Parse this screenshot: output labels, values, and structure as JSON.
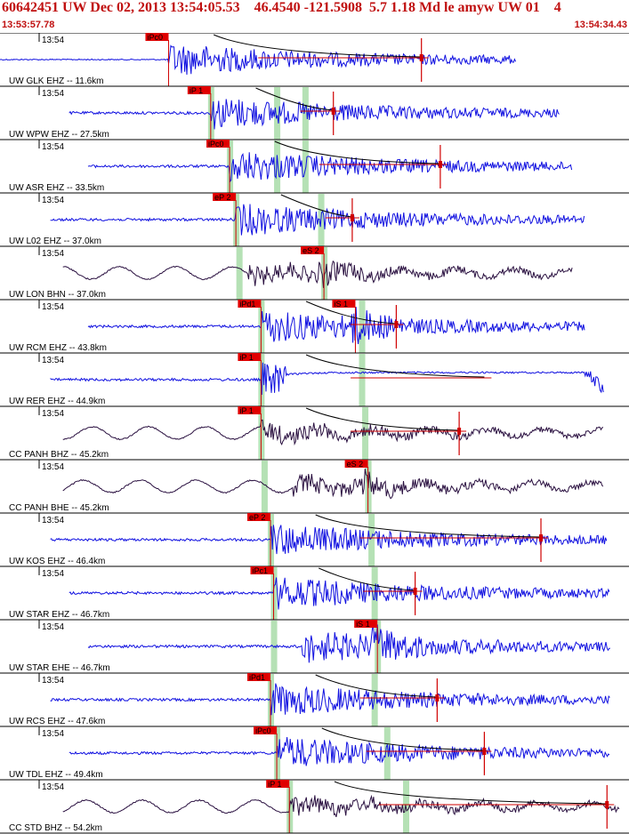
{
  "header": {
    "title": "60642451 UW Dec 02, 2013 13:54:05.53    46.4540 -121.5908  5.7 1.18 Md le amyw UW 01    4",
    "start_time": "13:53:57.78",
    "end_time": "13:54:34.43"
  },
  "colors": {
    "header_text": "#c01010",
    "trace_short_period": "#1010e0",
    "trace_broadband": "#2a1040",
    "pick_box": "#e00000",
    "pick_line": "#d00000",
    "window_band": "#a8dca8",
    "decay_curve": "#000000",
    "grid": "#000000"
  },
  "chart_data": {
    "type": "seismogram",
    "time_range": [
      "13:53:57.78",
      "13:54:34.43"
    ],
    "traces": [
      {
        "label": "UW GLK EHZ -- 11.6km",
        "time_tick": "13:54",
        "kind": "sp",
        "p_pick": "iPc0",
        "p_t": 0.268,
        "s_pick": "",
        "s_t": null,
        "windows": [],
        "coda_end": 0.67,
        "tail_mark": 0.67,
        "end_t": 0.82
      },
      {
        "label": "UW WPW EHZ -- 27.5km",
        "time_tick": "13:54",
        "kind": "sp",
        "p_pick": "iP 1",
        "p_t": 0.335,
        "s_pick": "",
        "s_t": null,
        "windows": [
          0.335,
          0.44,
          0.485
        ],
        "coda_end": 0.53,
        "tail_mark": 0.53,
        "end_t": 0.89
      },
      {
        "label": "UW ASR EHZ -- 33.5km",
        "time_tick": "13:54",
        "kind": "sp",
        "p_pick": "iPc0",
        "p_t": 0.365,
        "s_pick": "",
        "s_t": null,
        "windows": [
          0.365,
          0.44,
          0.485
        ],
        "coda_end": 0.7,
        "tail_mark": 0.7,
        "end_t": 0.91
      },
      {
        "label": "UW L02 EHZ -- 37.0km",
        "time_tick": "13:54",
        "kind": "sp",
        "p_pick": "eP 2",
        "p_t": 0.375,
        "s_pick": "",
        "s_t": null,
        "windows": [
          0.375,
          0.51
        ],
        "coda_end": 0.56,
        "tail_mark": 0.56,
        "end_t": 0.93
      },
      {
        "label": "UW LON BHN -- 37.0km",
        "time_tick": "13:54",
        "kind": "bb",
        "p_pick": "",
        "p_t": null,
        "s_pick": "eS 2",
        "s_t": 0.515,
        "windows": [
          0.38,
          0.515
        ],
        "coda_end": null,
        "tail_mark": null,
        "end_t": 0.91
      },
      {
        "label": "UW RCM EHZ -- 43.8km",
        "time_tick": "13:54",
        "kind": "sp",
        "p_pick": "iPd1",
        "p_t": 0.415,
        "s_pick": "iS 1",
        "s_t": 0.565,
        "windows": [
          0.415,
          0.575
        ],
        "coda_end": 0.63,
        "tail_mark": 0.63,
        "end_t": 0.93
      },
      {
        "label": "UW RER EHZ -- 44.9km",
        "time_tick": "13:54",
        "kind": "sp_drift",
        "p_pick": "iP 1",
        "p_t": 0.415,
        "s_pick": "",
        "s_t": null,
        "windows": [
          0.415,
          0.575
        ],
        "coda_end": 0.77,
        "tail_mark": null,
        "end_t": 0.96
      },
      {
        "label": "CC PANH BHZ -- 45.2km",
        "time_tick": "13:54",
        "kind": "bb",
        "p_pick": "iP 1",
        "p_t": 0.415,
        "s_pick": "",
        "s_t": null,
        "windows": [
          0.415,
          0.58
        ],
        "coda_end": 0.73,
        "tail_mark": 0.73,
        "end_t": 0.96
      },
      {
        "label": "CC PANH BHE -- 45.2km",
        "time_tick": "13:54",
        "kind": "bb",
        "p_pick": "",
        "p_t": null,
        "s_pick": "eS 2",
        "s_t": 0.585,
        "windows": [
          0.42,
          0.585
        ],
        "coda_end": null,
        "tail_mark": null,
        "end_t": 0.96
      },
      {
        "label": "UW KOS EHZ -- 46.4km",
        "time_tick": "13:54",
        "kind": "sp",
        "p_pick": "eP 2",
        "p_t": 0.43,
        "s_pick": "",
        "s_t": null,
        "windows": [
          0.43,
          0.59
        ],
        "coda_end": 0.86,
        "tail_mark": 0.86,
        "end_t": 0.965
      },
      {
        "label": "UW STAR EHZ -- 46.7km",
        "time_tick": "13:54",
        "kind": "sp",
        "p_pick": "iPc1",
        "p_t": 0.435,
        "s_pick": "",
        "s_t": null,
        "windows": [
          0.435,
          0.595
        ],
        "coda_end": 0.66,
        "tail_mark": 0.66,
        "end_t": 0.97
      },
      {
        "label": "UW STAR EHE -- 46.7km",
        "time_tick": "13:54",
        "kind": "sp",
        "p_pick": "",
        "p_t": null,
        "s_pick": "iS 1",
        "s_t": 0.6,
        "windows": [
          0.435,
          0.6
        ],
        "coda_end": null,
        "tail_mark": null,
        "end_t": 0.97
      },
      {
        "label": "UW RCS EHZ -- 47.6km",
        "time_tick": "13:54",
        "kind": "sp",
        "p_pick": "iPd1",
        "p_t": 0.43,
        "s_pick": "",
        "s_t": null,
        "windows": [
          0.43,
          0.595
        ],
        "coda_end": 0.695,
        "tail_mark": 0.695,
        "end_t": 0.97
      },
      {
        "label": "UW TDL EHZ -- 49.4km",
        "time_tick": "13:54",
        "kind": "sp",
        "p_pick": "iPc0",
        "p_t": 0.44,
        "s_pick": "",
        "s_t": null,
        "windows": [
          0.44,
          0.615
        ],
        "coda_end": 0.77,
        "tail_mark": 0.77,
        "end_t": 0.97
      },
      {
        "label": "CC STD BHZ -- 54.2km",
        "time_tick": "13:54",
        "kind": "bb",
        "p_pick": "iP 1",
        "p_t": 0.46,
        "s_pick": "",
        "s_t": null,
        "windows": [
          0.46,
          0.645
        ],
        "coda_end": 0.965,
        "tail_mark": 0.965,
        "end_t": 0.985
      }
    ]
  }
}
